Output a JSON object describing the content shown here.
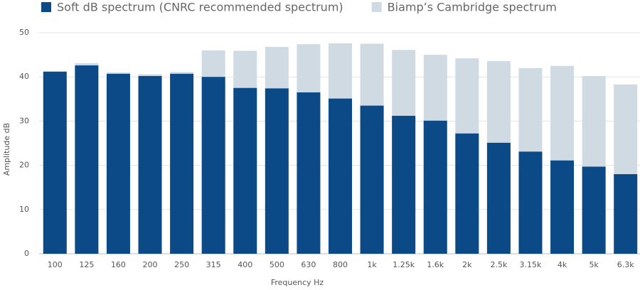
{
  "chart_data": {
    "type": "bar",
    "overlap": true,
    "x_label": "Frequency Hz",
    "y_label": "Amplitude dB",
    "categories": [
      "100",
      "125",
      "160",
      "200",
      "250",
      "315",
      "400",
      "500",
      "630",
      "800",
      "1k",
      "1.25k",
      "1.6k",
      "2k",
      "2.5k",
      "3.15k",
      "4k",
      "5k",
      "6.3k"
    ],
    "series": [
      {
        "name": "Soft dB spectrum (CNRC recommended spectrum)",
        "color": "#0b4a87",
        "values": [
          41.2,
          42.6,
          40.7,
          40.2,
          40.7,
          40,
          37.5,
          37.4,
          36.5,
          35.1,
          33.5,
          31.2,
          30.1,
          27.2,
          25.1,
          23.1,
          21.1,
          19.7,
          18
        ]
      },
      {
        "name": "Biamp’s Cambridge spectrum",
        "color": "#d0dae3",
        "values": [
          41.2,
          43.1,
          41,
          40.6,
          41.1,
          46,
          45.9,
          46.8,
          47.4,
          47.6,
          47.5,
          46.1,
          45,
          44.2,
          43.6,
          42,
          42.5,
          40.2,
          38.3
        ]
      }
    ],
    "ylim": [
      0,
      50
    ],
    "yticks": [
      0,
      10,
      20,
      30,
      40,
      50
    ],
    "grid": true
  }
}
